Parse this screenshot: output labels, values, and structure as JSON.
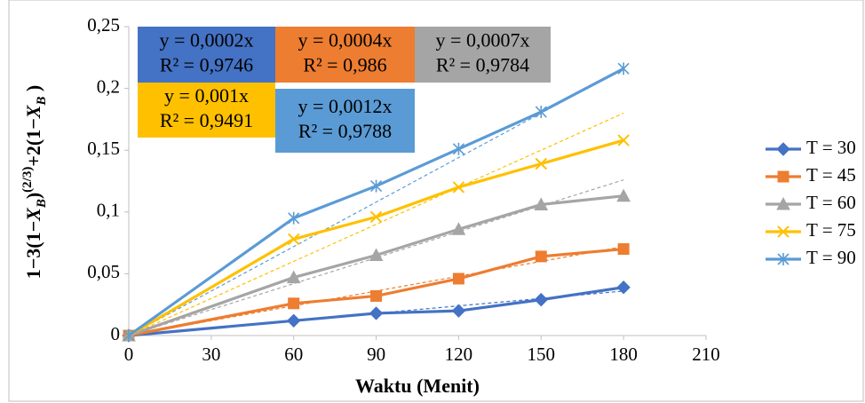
{
  "chart_data": {
    "type": "line",
    "x_label": "Waktu (Menit)",
    "y_label_parts": [
      "1−3(1−",
      "X",
      "B",
      ")",
      "(2/3)",
      "+2(1−",
      "X",
      "B",
      " )"
    ],
    "x": [
      0,
      60,
      90,
      120,
      150,
      180
    ],
    "xlim": [
      0,
      210
    ],
    "xticks": [
      0,
      30,
      60,
      90,
      120,
      150,
      180,
      210
    ],
    "ylim": [
      0,
      0.25
    ],
    "yticks": [
      0,
      {
        "value": 0.05,
        "label": "0,05"
      },
      {
        "value": 0.1,
        "label": "0,1"
      },
      {
        "value": 0.15,
        "label": "0,15"
      },
      {
        "value": 0.2,
        "label": "0,2"
      },
      {
        "value": 0.25,
        "label": "0,25"
      }
    ],
    "legend": "right",
    "series": [
      {
        "name": "T = 30",
        "color": "#4472c4",
        "marker": "diamond",
        "values": [
          0,
          0.012,
          0.018,
          0.02,
          0.029,
          0.039
        ],
        "trend": {
          "slope": 0.0002,
          "equation": "y = 0,0002x",
          "r2": "R² = 0,9746"
        }
      },
      {
        "name": "T = 45",
        "color": "#ed7d31",
        "marker": "square",
        "values": [
          0,
          0.026,
          0.032,
          0.046,
          0.064,
          0.07
        ],
        "trend": {
          "slope": 0.0004,
          "equation": "y = 0,0004x",
          "r2": "R² = 0,986"
        }
      },
      {
        "name": "T = 60",
        "color": "#a5a5a5",
        "marker": "triangle",
        "values": [
          0,
          0.047,
          0.065,
          0.086,
          0.106,
          0.113
        ],
        "trend": {
          "slope": 0.0007,
          "equation": "y = 0,0007x",
          "r2": "R² = 0,9784"
        }
      },
      {
        "name": "T = 75",
        "color": "#ffc000",
        "marker": "x",
        "values": [
          0,
          0.078,
          0.096,
          0.12,
          0.139,
          0.158
        ],
        "trend": {
          "slope": 0.001,
          "equation": "y = 0,001x",
          "r2": "R² = 0,9491"
        }
      },
      {
        "name": "T = 90",
        "color": "#5b9bd5",
        "marker": "star",
        "values": [
          0,
          0.095,
          0.121,
          0.151,
          0.181,
          0.216
        ],
        "trend": {
          "slope": 0.0012,
          "equation": "y = 0,0012x",
          "r2": "R² = 0,9788"
        }
      }
    ]
  }
}
